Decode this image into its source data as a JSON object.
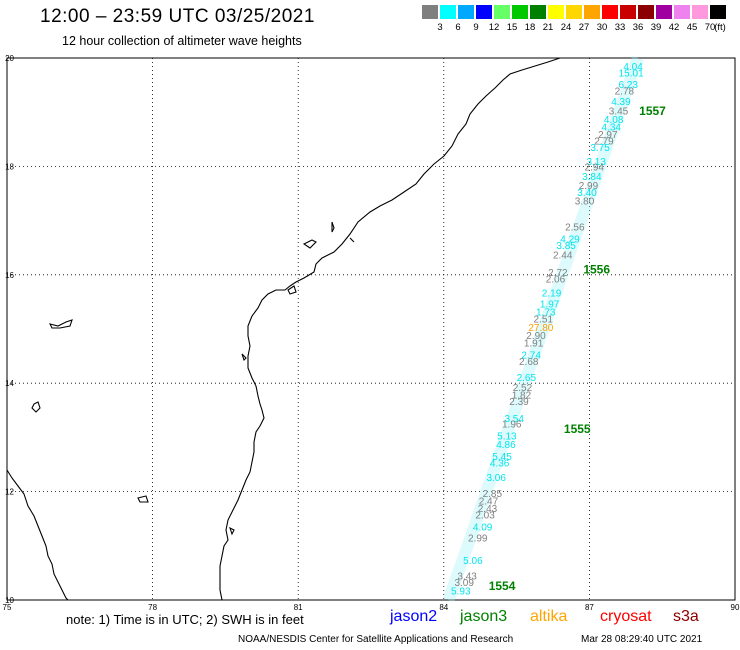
{
  "header": {
    "title": "12:00 – 23:59 UTC 03/25/2021",
    "subtitle": "12 hour collection of altimeter wave heights"
  },
  "legend": {
    "unit": "(ft)",
    "labels": [
      "3",
      "6",
      "9",
      "12",
      "15",
      "18",
      "21",
      "24",
      "27",
      "30",
      "33",
      "36",
      "39",
      "42",
      "45",
      "70"
    ],
    "colors": [
      "#7f7f7f",
      "#00ffff",
      "#00a8ff",
      "#0000ff",
      "#66ff66",
      "#00c800",
      "#008000",
      "#ffff00",
      "#ffd700",
      "#ffa500",
      "#ff0000",
      "#c80000",
      "#8b0000",
      "#a000a0",
      "#ee82ee",
      "#ff99dd",
      "#000000"
    ]
  },
  "axes": {
    "lon_labels": [
      "75",
      "78",
      "81",
      "84",
      "87",
      "90"
    ],
    "lat_labels": [
      "20",
      "18",
      "16",
      "14",
      "12",
      "10"
    ],
    "lon_range": [
      75,
      90
    ],
    "lat_range": [
      10,
      20
    ]
  },
  "track_labels": [
    {
      "text": "4.04",
      "color": "#00e5ee",
      "lon": 87.9,
      "lat": 19.78
    },
    {
      "text": "15.01",
      "color": "#00e5ee",
      "lon": 87.86,
      "lat": 19.66
    },
    {
      "text": "6.23",
      "color": "#00e5ee",
      "lon": 87.8,
      "lat": 19.45
    },
    {
      "text": "2.78",
      "color": "#808080",
      "lon": 87.72,
      "lat": 19.33
    },
    {
      "text": "4.39",
      "color": "#00e5ee",
      "lon": 87.65,
      "lat": 19.13
    },
    {
      "text": "3.45",
      "color": "#808080",
      "lon": 87.6,
      "lat": 18.96
    },
    {
      "text": "4.08",
      "color": "#00e5ee",
      "lon": 87.5,
      "lat": 18.8
    },
    {
      "text": "4.34",
      "color": "#00e5ee",
      "lon": 87.45,
      "lat": 18.66
    },
    {
      "text": "2.97",
      "color": "#808080",
      "lon": 87.38,
      "lat": 18.52
    },
    {
      "text": "2.79",
      "color": "#808080",
      "lon": 87.3,
      "lat": 18.4
    },
    {
      "text": "3.75",
      "color": "#00e5ee",
      "lon": 87.22,
      "lat": 18.28
    },
    {
      "text": "3.13",
      "color": "#00e5ee",
      "lon": 87.14,
      "lat": 18.03
    },
    {
      "text": "2.94",
      "color": "#808080",
      "lon": 87.1,
      "lat": 17.92
    },
    {
      "text": "3.84",
      "color": "#00e5ee",
      "lon": 87.05,
      "lat": 17.75
    },
    {
      "text": "2.99",
      "color": "#808080",
      "lon": 86.98,
      "lat": 17.58
    },
    {
      "text": "3.40",
      "color": "#00e5ee",
      "lon": 86.95,
      "lat": 17.45
    },
    {
      "text": "3.80",
      "color": "#808080",
      "lon": 86.9,
      "lat": 17.3
    },
    {
      "text": "2.56",
      "color": "#808080",
      "lon": 86.7,
      "lat": 16.82
    },
    {
      "text": "4.29",
      "color": "#00e5ee",
      "lon": 86.6,
      "lat": 16.6
    },
    {
      "text": "3.85",
      "color": "#00e5ee",
      "lon": 86.52,
      "lat": 16.48
    },
    {
      "text": "2.44",
      "color": "#808080",
      "lon": 86.45,
      "lat": 16.3
    },
    {
      "text": "2.72",
      "color": "#808080",
      "lon": 86.35,
      "lat": 15.98
    },
    {
      "text": "2.06",
      "color": "#808080",
      "lon": 86.3,
      "lat": 15.86
    },
    {
      "text": "2.19",
      "color": "#00e5ee",
      "lon": 86.22,
      "lat": 15.6
    },
    {
      "text": "1.97",
      "color": "#00e5ee",
      "lon": 86.18,
      "lat": 15.4
    },
    {
      "text": "1.73",
      "color": "#00e5ee",
      "lon": 86.1,
      "lat": 15.25
    },
    {
      "text": "2.51",
      "color": "#808080",
      "lon": 86.05,
      "lat": 15.12
    },
    {
      "text": "27.80",
      "color": "#ff9f00",
      "lon": 86.0,
      "lat": 14.96
    },
    {
      "text": "2.90",
      "color": "#808080",
      "lon": 85.9,
      "lat": 14.82
    },
    {
      "text": "1.91",
      "color": "#808080",
      "lon": 85.85,
      "lat": 14.68
    },
    {
      "text": "2.74",
      "color": "#00e5ee",
      "lon": 85.8,
      "lat": 14.46
    },
    {
      "text": "2.68",
      "color": "#808080",
      "lon": 85.75,
      "lat": 14.34
    },
    {
      "text": "2.65",
      "color": "#00e5ee",
      "lon": 85.7,
      "lat": 14.04
    },
    {
      "text": "2.52",
      "color": "#808080",
      "lon": 85.62,
      "lat": 13.86
    },
    {
      "text": "1.82",
      "color": "#808080",
      "lon": 85.6,
      "lat": 13.72
    },
    {
      "text": "2.39",
      "color": "#808080",
      "lon": 85.55,
      "lat": 13.6
    },
    {
      "text": "3.54",
      "color": "#00e5ee",
      "lon": 85.45,
      "lat": 13.28
    },
    {
      "text": "1.96",
      "color": "#808080",
      "lon": 85.4,
      "lat": 13.18
    },
    {
      "text": "5.13",
      "color": "#00e5ee",
      "lon": 85.3,
      "lat": 12.96
    },
    {
      "text": "4.86",
      "color": "#00e5ee",
      "lon": 85.28,
      "lat": 12.8
    },
    {
      "text": "5.45",
      "color": "#00e5ee",
      "lon": 85.2,
      "lat": 12.58
    },
    {
      "text": "4.36",
      "color": "#00e5ee",
      "lon": 85.15,
      "lat": 12.46
    },
    {
      "text": "3.06",
      "color": "#00e5ee",
      "lon": 85.08,
      "lat": 12.2
    },
    {
      "text": "2.85",
      "color": "#808080",
      "lon": 85.0,
      "lat": 11.9
    },
    {
      "text": "2.47",
      "color": "#808080",
      "lon": 84.92,
      "lat": 11.76
    },
    {
      "text": "2.43",
      "color": "#808080",
      "lon": 84.9,
      "lat": 11.62
    },
    {
      "text": "2.03",
      "color": "#808080",
      "lon": 84.85,
      "lat": 11.5
    },
    {
      "text": "4.09",
      "color": "#00e5ee",
      "lon": 84.8,
      "lat": 11.28
    },
    {
      "text": "2.99",
      "color": "#808080",
      "lon": 84.7,
      "lat": 11.08
    },
    {
      "text": "5.06",
      "color": "#00e5ee",
      "lon": 84.6,
      "lat": 10.66
    },
    {
      "text": "3.43",
      "color": "#808080",
      "lon": 84.48,
      "lat": 10.38
    },
    {
      "text": "3.09",
      "color": "#808080",
      "lon": 84.42,
      "lat": 10.26
    },
    {
      "text": "5.93",
      "color": "#00e5ee",
      "lon": 84.35,
      "lat": 10.1
    }
  ],
  "time_labels": [
    {
      "text": "1557",
      "lon": 88.3,
      "lat": 18.95
    },
    {
      "text": "1556",
      "lon": 87.15,
      "lat": 16.02
    },
    {
      "text": "1555",
      "lon": 86.75,
      "lat": 13.08
    },
    {
      "text": "1554",
      "lon": 85.2,
      "lat": 10.18
    }
  ],
  "note": "note:  1) Time is in UTC;  2) SWH is in feet",
  "satellites": [
    {
      "name": "jason2",
      "color": "#0000ff"
    },
    {
      "name": "jason3",
      "color": "#008000"
    },
    {
      "name": "altika",
      "color": "#ffa500"
    },
    {
      "name": "cryosat",
      "color": "#ff0000"
    },
    {
      "name": "s3a",
      "color": "#8b0000"
    }
  ],
  "footer": {
    "credit": "NOAA/NESDIS Center for Satellite Applications and Research",
    "timestamp": "Mar 28 08:29:40 UTC 2021"
  }
}
